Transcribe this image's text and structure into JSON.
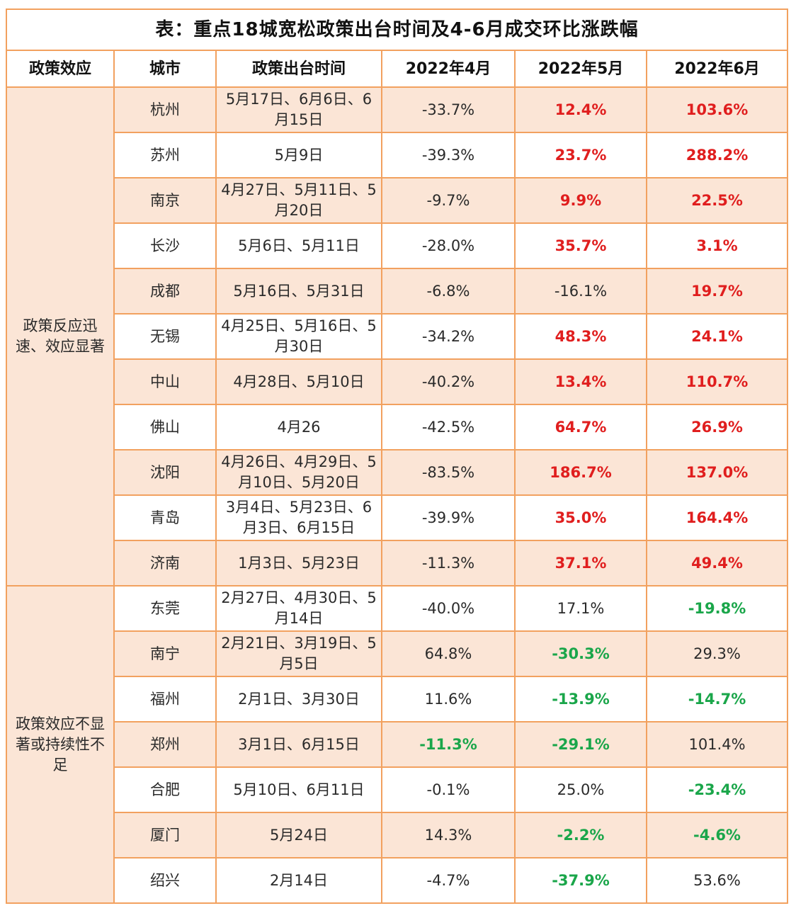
{
  "title": "表：重点18城宽松政策出台时间及4-6月成交环比涨跌幅",
  "headers": [
    "政策效应",
    "城市",
    "政策出台时间",
    "2022年4月",
    "2022年5月",
    "2022年6月"
  ],
  "groups": [
    {
      "label": "政策反应迅速、效应显著",
      "rows": [
        {
          "city": "杭州",
          "dates": "5月17日、6月6日、6月15日",
          "apr": "-33.7%",
          "may": "12.4%",
          "jun": "103.6%",
          "apr_style": "plain",
          "may_style": "pos",
          "jun_style": "pos"
        },
        {
          "city": "苏州",
          "dates": "5月9日",
          "apr": "-39.3%",
          "may": "23.7%",
          "jun": "288.2%",
          "apr_style": "plain",
          "may_style": "pos",
          "jun_style": "pos"
        },
        {
          "city": "南京",
          "dates": "4月27日、5月11日、5月20日",
          "apr": "-9.7%",
          "may": "9.9%",
          "jun": "22.5%",
          "apr_style": "plain",
          "may_style": "pos",
          "jun_style": "pos"
        },
        {
          "city": "长沙",
          "dates": "5月6日、5月11日",
          "apr": "-28.0%",
          "may": "35.7%",
          "jun": "3.1%",
          "apr_style": "plain",
          "may_style": "pos",
          "jun_style": "pos"
        },
        {
          "city": "成都",
          "dates": "5月16日、5月31日",
          "apr": "-6.8%",
          "may": "-16.1%",
          "jun": "19.7%",
          "apr_style": "plain",
          "may_style": "plain",
          "jun_style": "pos"
        },
        {
          "city": "无锡",
          "dates": "4月25日、5月16日、5月30日",
          "apr": "-34.2%",
          "may": "48.3%",
          "jun": "24.1%",
          "apr_style": "plain",
          "may_style": "pos",
          "jun_style": "pos"
        },
        {
          "city": "中山",
          "dates": "4月28日、5月10日",
          "apr": "-40.2%",
          "may": "13.4%",
          "jun": "110.7%",
          "apr_style": "plain",
          "may_style": "pos",
          "jun_style": "pos"
        },
        {
          "city": "佛山",
          "dates": "4月26",
          "apr": "-42.5%",
          "may": "64.7%",
          "jun": "26.9%",
          "apr_style": "plain",
          "may_style": "pos",
          "jun_style": "pos"
        },
        {
          "city": "沈阳",
          "dates": "4月26日、4月29日、5月10日、5月20日",
          "apr": "-83.5%",
          "may": "186.7%",
          "jun": "137.0%",
          "apr_style": "plain",
          "may_style": "pos",
          "jun_style": "pos"
        },
        {
          "city": "青岛",
          "dates": "3月4日、5月23日、6月3日、6月15日",
          "apr": "-39.9%",
          "may": "35.0%",
          "jun": "164.4%",
          "apr_style": "plain",
          "may_style": "pos",
          "jun_style": "pos"
        },
        {
          "city": "济南",
          "dates": "1月3日、5月23日",
          "apr": "-11.3%",
          "may": "37.1%",
          "jun": "49.4%",
          "apr_style": "plain",
          "may_style": "pos",
          "jun_style": "pos"
        }
      ]
    },
    {
      "label": "政策效应不显著或持续性不足",
      "rows": [
        {
          "city": "东莞",
          "dates": "2月27日、4月30日、5月14日",
          "apr": "-40.0%",
          "may": "17.1%",
          "jun": "-19.8%",
          "apr_style": "plain",
          "may_style": "plain",
          "jun_style": "neg"
        },
        {
          "city": "南宁",
          "dates": "2月21日、3月19日、5月5日",
          "apr": "64.8%",
          "may": "-30.3%",
          "jun": "29.3%",
          "apr_style": "plain",
          "may_style": "neg",
          "jun_style": "plain"
        },
        {
          "city": "福州",
          "dates": "2月1日、3月30日",
          "apr": "11.6%",
          "may": "-13.9%",
          "jun": "-14.7%",
          "apr_style": "plain",
          "may_style": "neg",
          "jun_style": "neg"
        },
        {
          "city": "郑州",
          "dates": "3月1日、6月15日",
          "apr": "-11.3%",
          "may": "-29.1%",
          "jun": "101.4%",
          "apr_style": "neg",
          "may_style": "neg",
          "jun_style": "plain"
        },
        {
          "city": "合肥",
          "dates": "5月10日、6月11日",
          "apr": "-0.1%",
          "may": "25.0%",
          "jun": "-23.4%",
          "apr_style": "plain",
          "may_style": "plain",
          "jun_style": "neg"
        },
        {
          "city": "厦门",
          "dates": "5月24日",
          "apr": "14.3%",
          "may": "-2.2%",
          "jun": "-4.6%",
          "apr_style": "plain",
          "may_style": "neg",
          "jun_style": "neg"
        },
        {
          "city": "绍兴",
          "dates": "2月14日",
          "apr": "-4.7%",
          "may": "-37.9%",
          "jun": "53.6%",
          "apr_style": "plain",
          "may_style": "neg",
          "jun_style": "plain"
        }
      ]
    }
  ],
  "colors": {
    "border": "#f2a15f",
    "shade": "#fbe5d6",
    "positive": "#e01e1e",
    "negative": "#1aa64a"
  }
}
